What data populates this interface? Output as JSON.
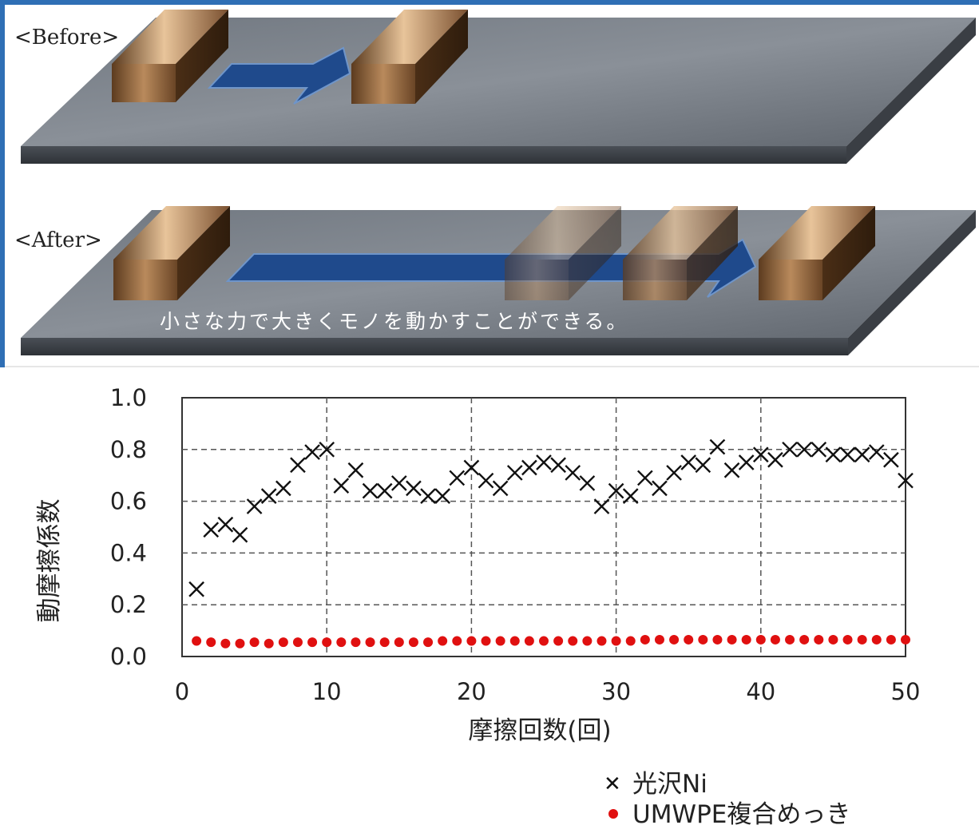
{
  "illustration": {
    "before_label": "<Before>",
    "after_label": "<After>",
    "caption": "小さな力で大きくモノを動かすことができる。"
  },
  "chart_data": {
    "type": "scatter",
    "xlabel": "摩擦回数(回)",
    "ylabel": "動摩擦係数",
    "xlim": [
      0,
      50
    ],
    "ylim": [
      0,
      1.0
    ],
    "x_ticks": [
      "0",
      "10",
      "20",
      "30",
      "40",
      "50"
    ],
    "y_ticks": [
      "0.0",
      "0.2",
      "0.4",
      "0.6",
      "0.8",
      "1.0"
    ],
    "grid": true,
    "legend_position": "bottom-right",
    "series": [
      {
        "name": "光沢Ni",
        "marker": "x",
        "color": "#111111",
        "x": [
          1,
          2,
          3,
          4,
          5,
          6,
          7,
          8,
          9,
          10,
          11,
          12,
          13,
          14,
          15,
          16,
          17,
          18,
          19,
          20,
          21,
          22,
          23,
          24,
          25,
          26,
          27,
          28,
          29,
          30,
          31,
          32,
          33,
          34,
          35,
          36,
          37,
          38,
          39,
          40,
          41,
          42,
          43,
          44,
          45,
          46,
          47,
          48,
          49,
          50
        ],
        "y": [
          0.26,
          0.49,
          0.51,
          0.47,
          0.58,
          0.62,
          0.65,
          0.74,
          0.79,
          0.8,
          0.66,
          0.72,
          0.64,
          0.64,
          0.67,
          0.65,
          0.62,
          0.62,
          0.69,
          0.73,
          0.68,
          0.65,
          0.71,
          0.73,
          0.75,
          0.74,
          0.71,
          0.67,
          0.58,
          0.64,
          0.62,
          0.69,
          0.65,
          0.71,
          0.75,
          0.74,
          0.81,
          0.72,
          0.75,
          0.78,
          0.76,
          0.8,
          0.8,
          0.8,
          0.78,
          0.78,
          0.78,
          0.79,
          0.76,
          0.68
        ]
      },
      {
        "name": "UMWPE複合めっき",
        "marker": "circle",
        "color": "#e01010",
        "x": [
          1,
          2,
          3,
          4,
          5,
          6,
          7,
          8,
          9,
          10,
          11,
          12,
          13,
          14,
          15,
          16,
          17,
          18,
          19,
          20,
          21,
          22,
          23,
          24,
          25,
          26,
          27,
          28,
          29,
          30,
          31,
          32,
          33,
          34,
          35,
          36,
          37,
          38,
          39,
          40,
          41,
          42,
          43,
          44,
          45,
          46,
          47,
          48,
          49,
          50
        ],
        "y": [
          0.06,
          0.055,
          0.05,
          0.05,
          0.055,
          0.05,
          0.055,
          0.055,
          0.055,
          0.055,
          0.055,
          0.055,
          0.055,
          0.055,
          0.055,
          0.055,
          0.055,
          0.06,
          0.06,
          0.06,
          0.06,
          0.06,
          0.06,
          0.06,
          0.06,
          0.06,
          0.06,
          0.06,
          0.06,
          0.06,
          0.06,
          0.065,
          0.065,
          0.065,
          0.065,
          0.065,
          0.065,
          0.065,
          0.065,
          0.065,
          0.065,
          0.065,
          0.065,
          0.065,
          0.065,
          0.065,
          0.065,
          0.065,
          0.065,
          0.065
        ]
      }
    ]
  }
}
